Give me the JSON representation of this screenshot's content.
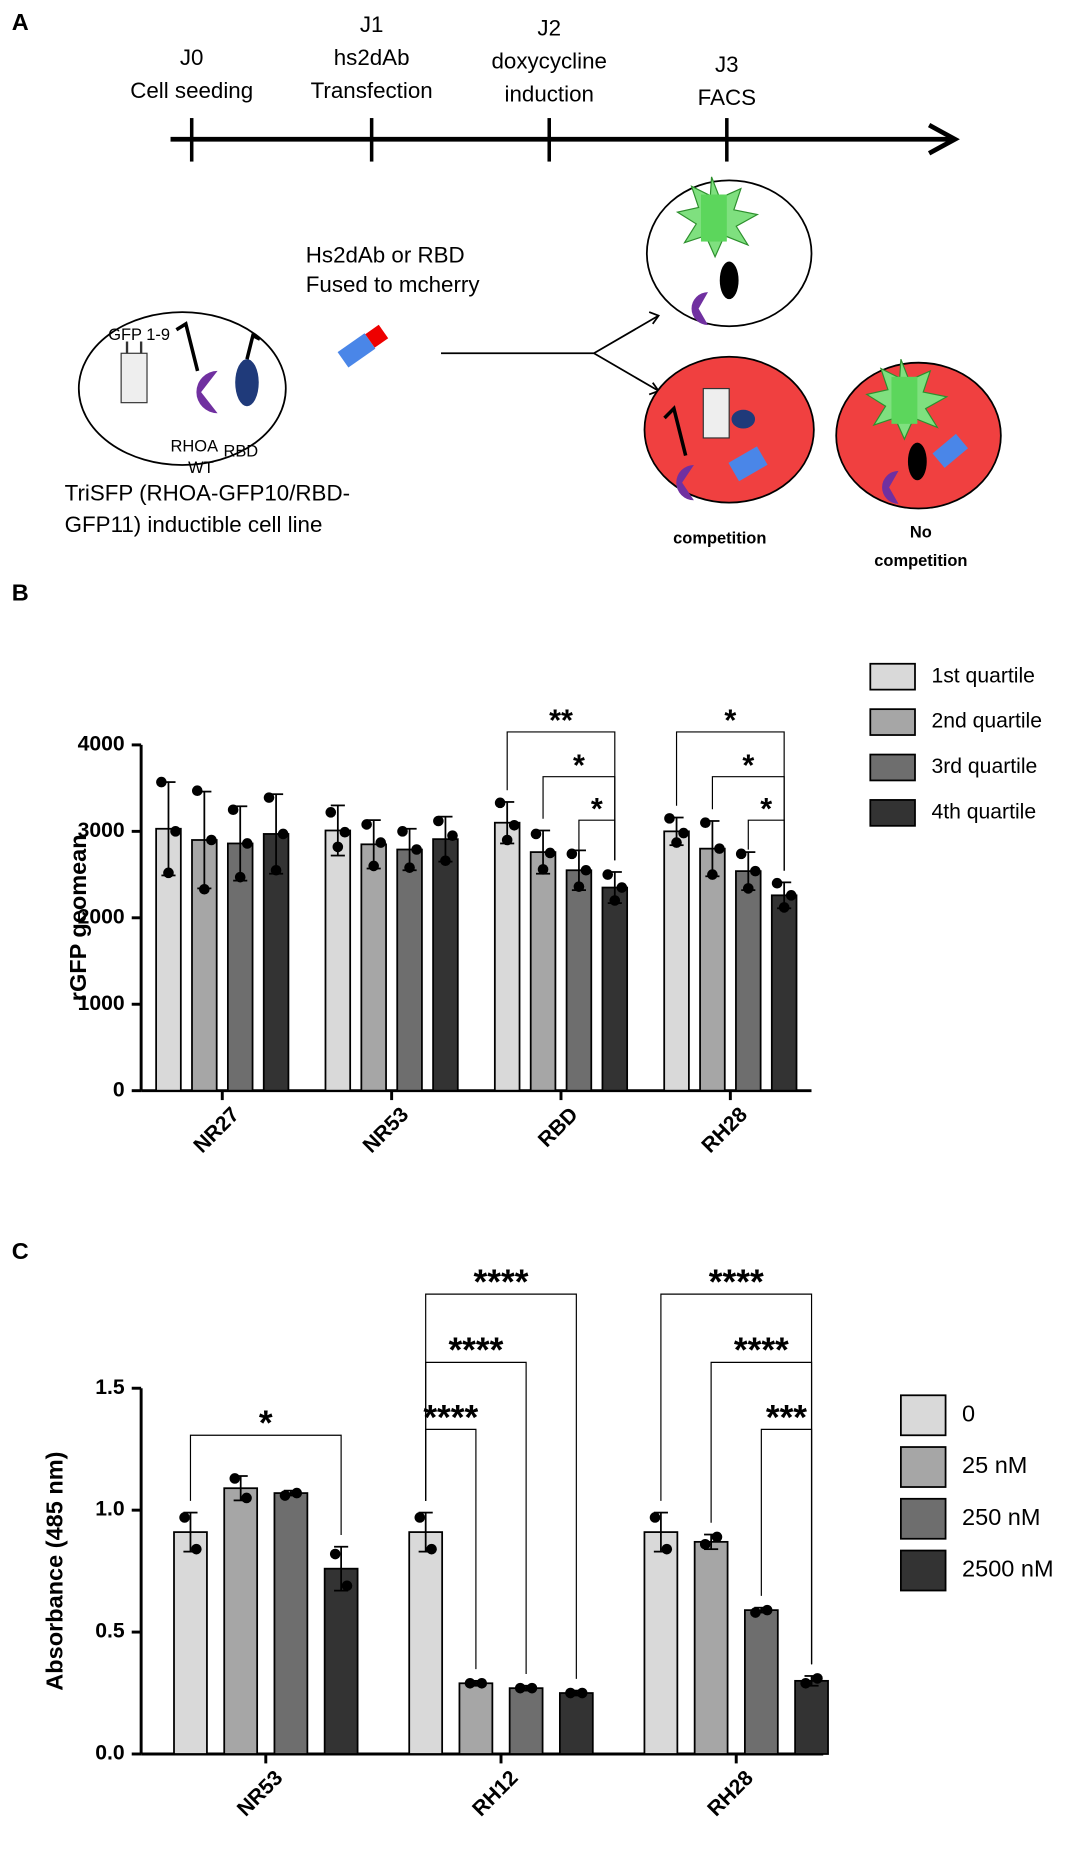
{
  "panels": [
    "A",
    "B",
    "C"
  ],
  "diagram": {
    "timeline": [
      {
        "day": "J0",
        "lines": [
          "Cell seeding"
        ]
      },
      {
        "day": "J1",
        "lines": [
          "hs2dAb",
          "Transfection"
        ]
      },
      {
        "day": "J2",
        "lines": [
          "doxycycline",
          "induction"
        ]
      },
      {
        "day": "J3",
        "lines": [
          "FACS"
        ]
      }
    ],
    "reagent": [
      "Hs2dAb or RBD",
      "Fused to mcherry"
    ],
    "cell_labels": [
      "GFP 1-9",
      "RHOA",
      "WT",
      "RBD"
    ],
    "caption": [
      "TriSFP (RHOA-GFP10/RBD-",
      "GFP11) inductible cell line"
    ],
    "competition": "competition",
    "no_competition": [
      "No",
      "competition"
    ]
  },
  "chart_data": [
    {
      "type": "bar",
      "ylabel": "rGFP geomean",
      "categories": [
        "NR27",
        "NR53",
        "RBD",
        "RH28"
      ],
      "series": [
        {
          "name": "1st quartile",
          "color": "#d9d9d9",
          "values": [
            3030,
            3010,
            3100,
            3000
          ],
          "errors": [
            540,
            290,
            240,
            160
          ],
          "points": [
            [
              3570,
              3000,
              2520
            ],
            [
              3220,
              2990,
              2820
            ],
            [
              3330,
              3070,
              2900
            ],
            [
              3150,
              2980,
              2870
            ]
          ]
        },
        {
          "name": "2nd quartile",
          "color": "#a6a6a6",
          "values": [
            2900,
            2850,
            2760,
            2800
          ],
          "errors": [
            560,
            280,
            250,
            320
          ],
          "points": [
            [
              3470,
              2900,
              2330
            ],
            [
              3080,
              2870,
              2600
            ],
            [
              2970,
              2750,
              2560
            ],
            [
              3100,
              2800,
              2500
            ]
          ]
        },
        {
          "name": "3rd quartile",
          "color": "#6e6e6e",
          "values": [
            2860,
            2790,
            2550,
            2540
          ],
          "errors": [
            430,
            240,
            230,
            220
          ],
          "points": [
            [
              3250,
              2860,
              2470
            ],
            [
              3000,
              2790,
              2580
            ],
            [
              2740,
              2550,
              2360
            ],
            [
              2740,
              2540,
              2340
            ]
          ]
        },
        {
          "name": "4th quartile",
          "color": "#333333",
          "values": [
            2970,
            2910,
            2350,
            2260
          ],
          "errors": [
            460,
            260,
            180,
            150
          ],
          "points": [
            [
              3390,
              2970,
              2550
            ],
            [
              3120,
              2950,
              2660
            ],
            [
              2500,
              2350,
              2200
            ],
            [
              2400,
              2260,
              2120
            ]
          ]
        }
      ],
      "ylim": [
        0,
        4000
      ],
      "yticks": [
        0,
        1000,
        2000,
        3000,
        4000
      ],
      "annotations": [
        "**",
        "*",
        "*",
        "*",
        "*",
        "*"
      ],
      "legend": "right"
    },
    {
      "type": "bar",
      "ylabel": "Absorbance (485 nm)",
      "categories": [
        "NR53",
        "RH12",
        "RH28"
      ],
      "series": [
        {
          "name": "0",
          "color": "#d9d9d9",
          "values": [
            0.91,
            0.91,
            0.91
          ],
          "errors": [
            0.08,
            0.08,
            0.08
          ],
          "points": [
            [
              0.97,
              0.84
            ],
            [
              0.97,
              0.84
            ],
            [
              0.97,
              0.84
            ]
          ]
        },
        {
          "name": "25 nM",
          "color": "#a6a6a6",
          "values": [
            1.09,
            0.29,
            0.87
          ],
          "errors": [
            0.05,
            0.01,
            0.03
          ],
          "points": [
            [
              1.13,
              1.05
            ],
            [
              0.29,
              0.29
            ],
            [
              0.86,
              0.89
            ]
          ]
        },
        {
          "name": "250 nM",
          "color": "#6e6e6e",
          "values": [
            1.07,
            0.27,
            0.59
          ],
          "errors": [
            0.01,
            0.01,
            0.01
          ],
          "points": [
            [
              1.06,
              1.07
            ],
            [
              0.27,
              0.27
            ],
            [
              0.58,
              0.59
            ]
          ]
        },
        {
          "name": "2500 nM",
          "color": "#333333",
          "values": [
            0.76,
            0.25,
            0.3
          ],
          "errors": [
            0.09,
            0.01,
            0.02
          ],
          "points": [
            [
              0.82,
              0.69
            ],
            [
              0.25,
              0.25
            ],
            [
              0.29,
              0.31
            ]
          ]
        }
      ],
      "ylim": [
        0,
        1.5
      ],
      "yticks": [
        {
          "value": 0,
          "label": "0.0"
        },
        {
          "value": 0.5,
          "label": "0.5"
        },
        {
          "value": 1,
          "label": "1.0"
        },
        {
          "value": 1.5,
          "label": "1.5"
        }
      ],
      "annotations": [
        "*",
        "****",
        "****",
        "****",
        "****",
        "****",
        "***"
      ],
      "legend": "right"
    }
  ]
}
